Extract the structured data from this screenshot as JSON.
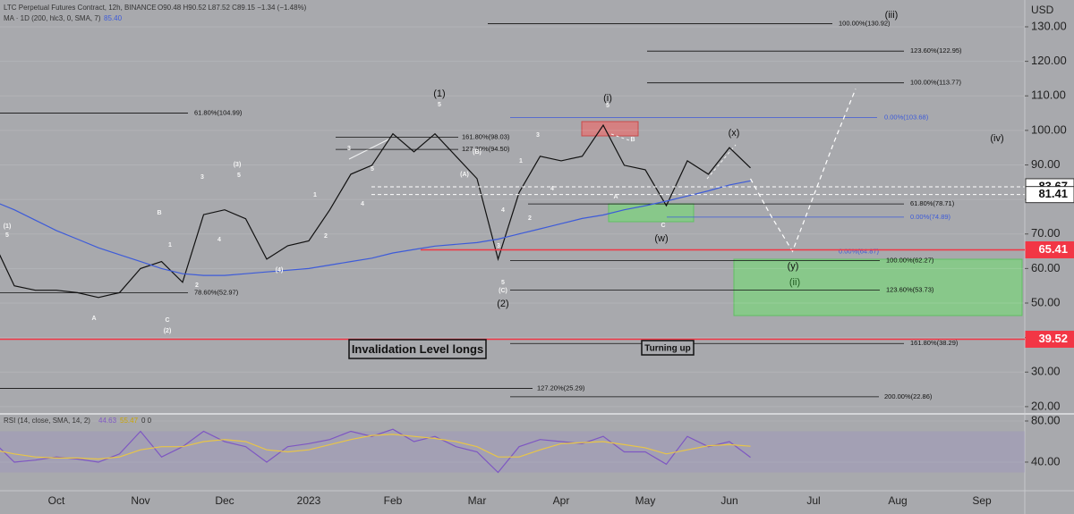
{
  "chart_data": [
    {
      "type": "line",
      "title": "LTC Perpetual Futures Contract, 12h, BINANCE",
      "ohlc": "O90.48 H90.52 L87.52 C89.15 −1.34 (−1.48%)",
      "currency": "USD",
      "categories": [
        null,
        null,
        null,
        "Oct",
        null,
        null,
        null,
        "Nov",
        null,
        null,
        null,
        "Dec",
        null,
        null,
        null,
        "2023",
        null,
        null,
        null,
        "Feb",
        null,
        null,
        null,
        "Mar",
        null,
        null,
        null,
        "Apr",
        null,
        null,
        null,
        "May",
        null,
        null,
        null,
        "Jun",
        null,
        null,
        null,
        "Jul",
        null,
        null,
        null,
        "Aug",
        null,
        null,
        null,
        "Sep",
        null
      ],
      "series": [
        {
          "color": "#111111",
          "values": [
            67.9,
            55,
            53.7,
            53.7,
            53,
            51.6,
            53,
            60,
            62,
            56,
            75.6,
            77,
            74.4,
            62.7,
            66.6,
            68,
            77,
            87.3,
            89.9,
            99,
            93.8,
            99,
            92.5,
            86,
            62.7,
            82,
            92.5,
            91.2,
            92.5,
            101.5,
            89.9,
            88.6,
            78.2,
            91.2,
            87.3,
            95,
            89.15,
            null,
            null,
            null,
            null,
            null,
            null,
            null,
            null,
            null,
            null,
            null,
            null
          ]
        },
        {
          "name": "MA · 1D (200, hlc3, 0, SMA, 7)",
          "last_value_label": "85.40",
          "color": "#3d5bd9",
          "values": [
            79.5,
            77,
            74,
            71,
            68.5,
            66,
            64,
            62,
            60,
            58.5,
            58,
            58,
            58.5,
            59,
            59.5,
            60,
            61,
            62,
            63,
            64.5,
            65.5,
            66.5,
            67,
            67.5,
            68.5,
            70,
            71.5,
            73,
            74.5,
            75.5,
            77,
            78.2,
            79.5,
            81,
            82.5,
            84.2,
            85.4,
            null,
            null,
            null,
            null,
            null,
            null,
            null,
            null,
            null,
            null,
            null,
            null
          ]
        },
        {
          "color": "#ffffff",
          "dashed": true,
          "values": [
            null,
            null,
            null,
            null,
            null,
            null,
            null,
            null,
            null,
            null,
            null,
            null,
            null,
            null,
            null,
            null,
            null,
            null,
            null,
            null,
            null,
            null,
            null,
            null,
            null,
            null,
            null,
            null,
            null,
            null,
            null,
            null,
            null,
            null,
            null,
            null,
            86,
            75,
            65,
            81,
            97,
            112,
            null,
            null,
            null,
            null,
            null,
            null,
            null
          ]
        }
      ],
      "ylim": [
        17.9,
        137.76
      ],
      "yticks": [
        {
          "value": 130,
          "label": "130.00"
        },
        {
          "value": 120,
          "label": "120.00"
        },
        {
          "value": 110,
          "label": "110.00"
        },
        {
          "value": 100,
          "label": "100.00"
        },
        {
          "value": 90,
          "label": "90.00"
        },
        {
          "value": 80,
          "label": "80.00"
        },
        {
          "value": 70,
          "label": "70.00"
        },
        {
          "value": 60,
          "label": "60.00"
        },
        {
          "value": 50,
          "label": "50.00"
        },
        {
          "value": 40,
          "label": "40.00"
        },
        {
          "value": 30,
          "label": "30.00"
        },
        {
          "value": 20,
          "label": "20.00"
        }
      ],
      "grid": true,
      "levels": [
        {
          "value": 130.92,
          "label": "100.00%(130.92)",
          "color": "#111111"
        },
        {
          "value": 122.95,
          "label": "123.60%(122.95)",
          "color": "#111111"
        },
        {
          "value": 113.77,
          "label": "100.00%(113.77)",
          "color": "#111111"
        },
        {
          "value": 104.99,
          "label": "61.80%(104.99)",
          "color": "#111111"
        },
        {
          "value": 103.68,
          "label": "0.00%(103.68)",
          "color": "#3d5bd9"
        },
        {
          "value": 98.03,
          "label": "161.80%(98.03)",
          "color": "#111111"
        },
        {
          "value": 94.5,
          "label": "127.20%(94.50)",
          "color": "#111111"
        },
        {
          "value": 78.71,
          "label": "61.80%(78.71)",
          "color": "#111111"
        },
        {
          "value": 74.89,
          "label": "0.00%(74.89)",
          "color": "#3d5bd9"
        },
        {
          "value": 64.87,
          "label": "0.00%(64.87)",
          "color": "#3d5bd9"
        },
        {
          "value": 62.27,
          "label": "100.00%(62.27)",
          "color": "#111111"
        },
        {
          "value": 53.73,
          "label": "123.60%(53.73)",
          "color": "#111111"
        },
        {
          "value": 52.97,
          "label": "78.60%(52.97)",
          "color": "#111111"
        },
        {
          "value": 38.29,
          "label": "161.80%(38.29)",
          "color": "#111111"
        },
        {
          "value": 25.29,
          "label": "127.20%(25.29)",
          "color": "#111111"
        },
        {
          "value": 22.86,
          "label": "200.00%(22.86)",
          "color": "#111111"
        }
      ],
      "marked_levels": [
        {
          "value": 83.67,
          "color": "#ffffff",
          "dashed": true
        },
        {
          "value": 81.41,
          "color": "#ffffff",
          "dashed": true
        },
        {
          "value": 65.41,
          "color": "#f23645",
          "dashed": false
        },
        {
          "value": 39.52,
          "color": "#f23645",
          "dashed": false
        }
      ],
      "wave_labels": [
        "(1)",
        "(2)",
        "(i)",
        "(x)",
        "(w)",
        "(y)",
        "(ii)",
        "(iii)",
        "(iv)",
        "(1)",
        "5",
        "B",
        "1",
        "2",
        "A",
        "C",
        "(2)",
        "3",
        "(3)",
        "5",
        "4",
        "(4)",
        "1",
        "2",
        "3",
        "4",
        "5",
        "(B)",
        "(A)",
        "5",
        "4",
        "3",
        "5",
        "(C)",
        "1",
        "2",
        "3",
        "4",
        "5",
        "A",
        "B",
        "C"
      ],
      "boxed_annotations": [
        "Invalidation Level longs",
        "Turning up"
      ]
    },
    {
      "type": "line",
      "title": "RSI (14, close, SMA, 14, 2)",
      "status": "0 0",
      "series": [
        {
          "color": "#7e57c2",
          "last_value_label": "44.63",
          "values": [
            60,
            40,
            42,
            45,
            43,
            40,
            48,
            70,
            45,
            55,
            70,
            60,
            55,
            40,
            55,
            58,
            62,
            70,
            65,
            72,
            60,
            65,
            55,
            50,
            30,
            55,
            62,
            60,
            58,
            65,
            50,
            50,
            38,
            65,
            55,
            60,
            44.63,
            null,
            null,
            null,
            null,
            null,
            null,
            null,
            null,
            null,
            null,
            null,
            null
          ]
        },
        {
          "color": "#e8c547",
          "last_value_label": "55.47",
          "values": [
            52,
            48,
            45,
            44,
            44,
            43,
            45,
            52,
            55,
            55,
            60,
            62,
            60,
            52,
            50,
            52,
            57,
            62,
            66,
            67,
            65,
            63,
            60,
            55,
            45,
            45,
            52,
            58,
            59,
            60,
            57,
            54,
            48,
            52,
            56,
            57,
            55.47,
            null,
            null,
            null,
            null,
            null,
            null,
            null,
            null,
            null,
            null,
            null,
            null
          ]
        }
      ],
      "band": [
        30,
        70
      ],
      "ylim": [
        13,
        85.2
      ],
      "yticks": [
        {
          "value": 80,
          "label": "80.00"
        },
        {
          "value": 40,
          "label": "40.00"
        }
      ]
    }
  ]
}
